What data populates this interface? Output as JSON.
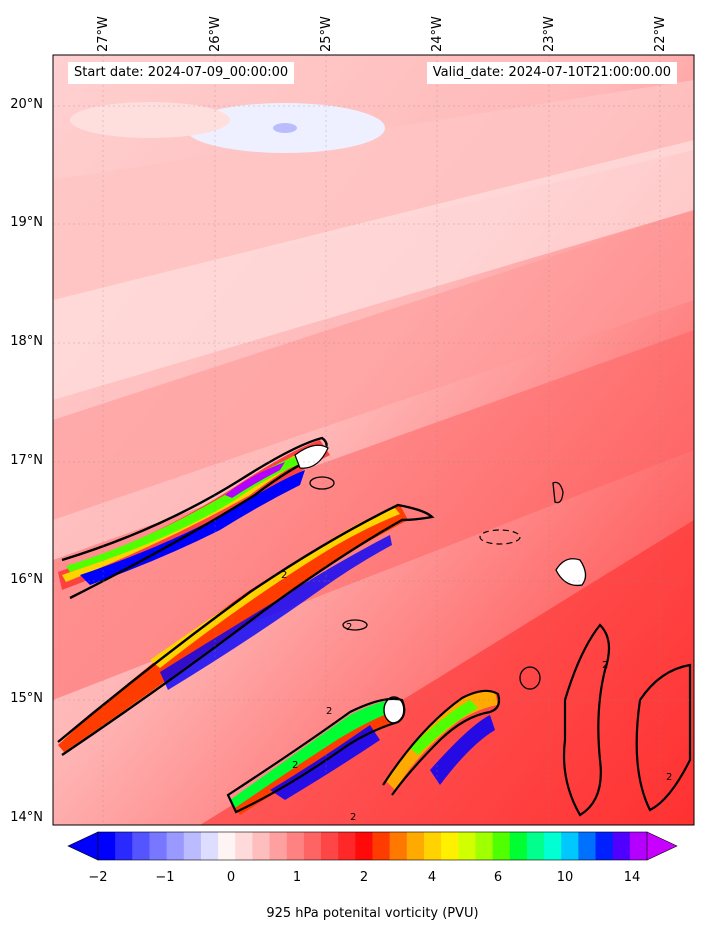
{
  "map": {
    "start_text": "Start date: 2024-07-09_00:00:00",
    "valid_text": "Valid_date: 2024-07-10T21:00:00.00",
    "lon_labels": [
      "27°W",
      "26°W",
      "25°W",
      "24°W",
      "23°W",
      "22°W"
    ],
    "lat_labels": [
      "20°N",
      "19°N",
      "18°N",
      "17°N",
      "16°N",
      "15°N",
      "14°N"
    ],
    "contour_label": "2"
  },
  "colorbar": {
    "label": "925 hPa potenital vorticity (PVU)",
    "ticks": [
      "−2",
      "−1",
      "0",
      "1",
      "2",
      "4",
      "6",
      "10",
      "14"
    ],
    "colors": [
      "#0000ff",
      "#2a2aff",
      "#5555ff",
      "#7777ff",
      "#9999ff",
      "#bbbbff",
      "#ddddff",
      "#fff4f4",
      "#ffdada",
      "#ffbebe",
      "#ffa0a0",
      "#ff8282",
      "#ff6464",
      "#ff4646",
      "#ff2828",
      "#ff0a0a",
      "#ff3c00",
      "#ff7800",
      "#ffaa00",
      "#ffd200",
      "#fff000",
      "#d2ff00",
      "#a0ff00",
      "#50ff00",
      "#00ff32",
      "#00ff8c",
      "#00ffd2",
      "#00c8ff",
      "#0070ff",
      "#0020ff",
      "#5000ff",
      "#b400ff"
    ],
    "under_color": "#0000ff",
    "over_color": "#c800ff"
  }
}
